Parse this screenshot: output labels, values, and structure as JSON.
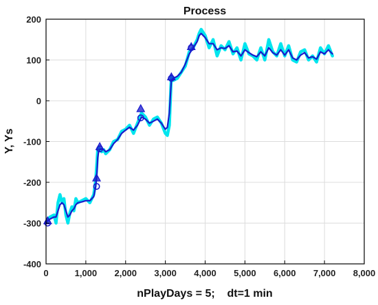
{
  "chart_data": {
    "type": "line",
    "title": "Process",
    "xlabel": "nPlayDays = 5;    dt=1 min",
    "ylabel": "Y, Ys",
    "xlim": [
      0,
      8000
    ],
    "ylim": [
      -400,
      200
    ],
    "xticks": [
      0,
      1000,
      2000,
      3000,
      4000,
      5000,
      6000,
      7000,
      8000
    ],
    "xtick_labels": [
      "0",
      "1,000",
      "2,000",
      "3,000",
      "4,000",
      "5,000",
      "6,000",
      "7,000",
      "8,000"
    ],
    "yticks": [
      -400,
      -300,
      -200,
      -100,
      0,
      100,
      200
    ],
    "ytick_labels": [
      "-400",
      "-300",
      "-200",
      "-100",
      "0",
      "100",
      "200"
    ],
    "grid": true,
    "series": [
      {
        "color": "#00e5ee",
        "x": [
          0,
          100,
          200,
          250,
          300,
          350,
          400,
          450,
          500,
          550,
          600,
          650,
          700,
          750,
          800,
          900,
          1000,
          1100,
          1150,
          1200,
          1250,
          1280,
          1300,
          1320,
          1350,
          1400,
          1450,
          1500,
          1600,
          1700,
          1800,
          1900,
          2000,
          2100,
          2200,
          2300,
          2400,
          2500,
          2600,
          2700,
          2800,
          2900,
          3000,
          3050,
          3100,
          3150,
          3200,
          3300,
          3400,
          3500,
          3600,
          3700,
          3800,
          3850,
          3900,
          4000,
          4100,
          4200,
          4300,
          4400,
          4500,
          4600,
          4700,
          4800,
          4900,
          5000,
          5100,
          5200,
          5300,
          5400,
          5500,
          5600,
          5700,
          5800,
          5900,
          6000,
          6100,
          6200,
          6300,
          6400,
          6500,
          6600,
          6700,
          6800,
          6900,
          7000,
          7100,
          7200
        ],
        "y": [
          -298,
          -285,
          -280,
          -300,
          -250,
          -230,
          -250,
          -240,
          -280,
          -300,
          -275,
          -260,
          -270,
          -240,
          -250,
          -245,
          -240,
          -250,
          -240,
          -230,
          -195,
          -150,
          -120,
          -115,
          -118,
          -125,
          -120,
          -130,
          -120,
          -100,
          -95,
          -75,
          -70,
          -60,
          -80,
          -55,
          -30,
          -40,
          -60,
          -45,
          -40,
          -55,
          -80,
          -85,
          -60,
          60,
          50,
          55,
          70,
          85,
          120,
          130,
          150,
          165,
          175,
          160,
          130,
          150,
          110,
          135,
          125,
          145,
          115,
          130,
          100,
          140,
          115,
          110,
          100,
          130,
          100,
          150,
          120,
          110,
          140,
          110,
          135,
          100,
          95,
          120,
          125,
          100,
          110,
          95,
          130,
          115,
          135,
          110
        ]
      },
      {
        "color": "#1a1acc",
        "x": [
          0,
          100,
          200,
          250,
          300,
          350,
          400,
          450,
          500,
          550,
          600,
          650,
          700,
          750,
          800,
          900,
          1000,
          1100,
          1150,
          1200,
          1250,
          1280,
          1300,
          1320,
          1350,
          1400,
          1450,
          1500,
          1600,
          1700,
          1800,
          1900,
          2000,
          2100,
          2200,
          2300,
          2400,
          2500,
          2600,
          2700,
          2800,
          2900,
          3000,
          3050,
          3100,
          3150,
          3200,
          3300,
          3400,
          3500,
          3600,
          3700,
          3800,
          3850,
          3900,
          4000,
          4100,
          4200,
          4300,
          4400,
          4500,
          4600,
          4700,
          4800,
          4900,
          5000,
          5100,
          5200,
          5300,
          5400,
          5500,
          5600,
          5700,
          5800,
          5900,
          6000,
          6100,
          6200,
          6300,
          6400,
          6500,
          6600,
          6700,
          6800,
          6900,
          7000,
          7100,
          7200
        ],
        "y": [
          -298,
          -290,
          -285,
          -285,
          -270,
          -255,
          -250,
          -255,
          -270,
          -285,
          -280,
          -270,
          -265,
          -255,
          -250,
          -248,
          -245,
          -245,
          -240,
          -235,
          -210,
          -175,
          -140,
          -125,
          -120,
          -118,
          -120,
          -125,
          -120,
          -105,
          -95,
          -80,
          -72,
          -65,
          -72,
          -60,
          -40,
          -45,
          -55,
          -50,
          -45,
          -55,
          -70,
          -65,
          -30,
          50,
          55,
          60,
          70,
          90,
          115,
          130,
          145,
          160,
          165,
          155,
          140,
          140,
          125,
          130,
          128,
          135,
          120,
          122,
          110,
          125,
          118,
          112,
          108,
          120,
          110,
          130,
          118,
          112,
          125,
          112,
          125,
          105,
          100,
          112,
          118,
          105,
          108,
          102,
          120,
          115,
          125,
          115
        ]
      }
    ],
    "markers": [
      {
        "shape": "triangle",
        "x": 40,
        "y": -295
      },
      {
        "shape": "circle",
        "x": 40,
        "y": -300
      },
      {
        "shape": "triangle",
        "x": 1270,
        "y": -190
      },
      {
        "shape": "circle",
        "x": 1270,
        "y": -210
      },
      {
        "shape": "triangle",
        "x": 1350,
        "y": -113
      },
      {
        "shape": "circle",
        "x": 1350,
        "y": -118
      },
      {
        "shape": "triangle",
        "x": 2380,
        "y": -20
      },
      {
        "shape": "circle",
        "x": 2380,
        "y": -42
      },
      {
        "shape": "triangle",
        "x": 3150,
        "y": 58
      },
      {
        "shape": "circle",
        "x": 3150,
        "y": 55
      },
      {
        "shape": "triangle",
        "x": 3650,
        "y": 132
      },
      {
        "shape": "circle",
        "x": 3650,
        "y": 130
      }
    ],
    "marker_color": "#1a1acc"
  }
}
